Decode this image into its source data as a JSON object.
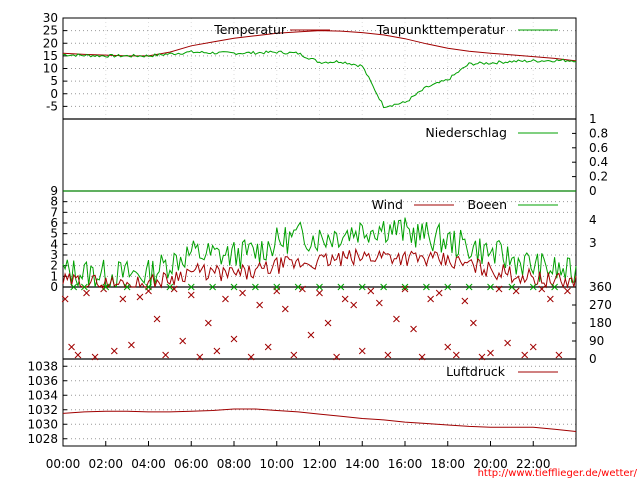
{
  "chart_data": [
    {
      "type": "line",
      "title": "",
      "xlabel": "",
      "ylabel": "",
      "ylim": [
        -10,
        30
      ],
      "yticks": [
        "30",
        "25",
        "20",
        "15",
        "10",
        "5",
        "0",
        "-5"
      ],
      "series": [
        {
          "name": "Temperatur",
          "color": "#a00000",
          "x": [
            0,
            1,
            2,
            3,
            4,
            5,
            6,
            7,
            8,
            9,
            10,
            11,
            12,
            13,
            14,
            15,
            16,
            17,
            18,
            19,
            20,
            21,
            22,
            23,
            24
          ],
          "values": [
            16,
            15.6,
            15.3,
            15,
            15,
            16.5,
            19,
            20.5,
            22,
            23,
            24,
            24.5,
            25,
            24.8,
            24.2,
            23.3,
            21.8,
            19.8,
            18,
            16.8,
            16,
            15.4,
            14.7,
            14,
            13
          ]
        },
        {
          "name": "Taupunkttemperatur",
          "color": "#00a000",
          "x": [
            0,
            1,
            2,
            3,
            4,
            5,
            6,
            7,
            8,
            9,
            10,
            11,
            12,
            13,
            14,
            15,
            16,
            17,
            18,
            19,
            20,
            21,
            22,
            23,
            24
          ],
          "values": [
            15.5,
            15.2,
            15,
            15,
            15,
            15.8,
            16.5,
            16.2,
            16.1,
            16.2,
            16.5,
            16,
            12.5,
            12.8,
            11,
            -5,
            -3.5,
            2.5,
            5.5,
            11.8,
            12.2,
            12.8,
            13,
            13.2,
            13.2
          ]
        }
      ]
    },
    {
      "type": "line",
      "title": "",
      "xlabel": "",
      "ylabel": "",
      "ylim": [
        0,
        1
      ],
      "yticks": [
        "1",
        "0.8",
        "0.6",
        "0.4",
        "0.2",
        "0"
      ],
      "series": [
        {
          "name": "Niederschlag",
          "color": "#00a000",
          "x": [
            0,
            24
          ],
          "values": [
            0,
            0
          ]
        }
      ]
    },
    {
      "type": "line",
      "title": "",
      "xlabel": "",
      "ylabel": "",
      "ylim": [
        0,
        9
      ],
      "yticks": [
        "9",
        "8",
        "7",
        "6",
        "5",
        "4",
        "3",
        "2",
        "1",
        "0"
      ],
      "y2ticks": [
        "4",
        "3"
      ],
      "series": [
        {
          "name": "Wind",
          "color": "#a00000",
          "x": [
            0,
            1,
            2,
            3,
            4,
            5,
            6,
            7,
            8,
            9,
            10,
            11,
            12,
            13,
            14,
            15,
            16,
            17,
            18,
            19,
            20,
            21,
            22,
            23,
            24
          ],
          "values": [
            0.5,
            0.5,
            0.3,
            0.3,
            0.3,
            0.8,
            1.5,
            1.3,
            1.2,
            1.4,
            2,
            2.2,
            2.4,
            2.6,
            2.8,
            3,
            2.8,
            2.6,
            2.4,
            2.1,
            1.6,
            1.2,
            0.9,
            0.5,
            0.5
          ]
        },
        {
          "name": "Boeen",
          "color": "#00a000",
          "x": [
            0,
            1,
            2,
            3,
            4,
            5,
            6,
            7,
            8,
            9,
            10,
            11,
            12,
            13,
            14,
            15,
            16,
            17,
            18,
            19,
            20,
            21,
            22,
            23,
            24
          ],
          "values": [
            1.5,
            1.3,
            1.2,
            1.2,
            1.2,
            2.3,
            3.2,
            3,
            3,
            3.3,
            4.2,
            4.8,
            4.6,
            5,
            5.4,
            5.6,
            5.2,
            4.8,
            4.3,
            3.8,
            3.2,
            2.6,
            2,
            1.6,
            1.2
          ]
        }
      ]
    },
    {
      "type": "scatter",
      "title": "",
      "xlabel": "",
      "ylabel": "",
      "ylim": [
        0,
        360
      ],
      "yticks": [
        "360",
        "270",
        "180",
        "90",
        "0"
      ],
      "series": [
        {
          "name": "",
          "color": "#a00000",
          "marker": "x",
          "x": [
            0.1,
            0.4,
            0.7,
            1.1,
            1.5,
            1.9,
            2.4,
            2.8,
            3.2,
            3.6,
            4,
            4.4,
            4.8,
            5.2,
            5.6,
            6,
            6.4,
            6.8,
            7.2,
            7.6,
            8,
            8.4,
            8.8,
            9.2,
            9.6,
            10,
            10.4,
            10.8,
            11.2,
            11.6,
            12,
            12.4,
            12.8,
            13.2,
            13.6,
            14,
            14.4,
            14.8,
            15.2,
            15.6,
            16,
            16.4,
            16.8,
            17.2,
            17.6,
            18,
            18.4,
            18.8,
            19.2,
            19.6,
            20,
            20.4,
            20.8,
            21.2,
            21.6,
            22,
            22.4,
            22.8,
            23.2,
            23.6
          ],
          "values": [
            300,
            60,
            20,
            330,
            10,
            350,
            40,
            300,
            70,
            310,
            340,
            200,
            20,
            350,
            90,
            320,
            10,
            180,
            40,
            300,
            100,
            330,
            10,
            270,
            60,
            340,
            250,
            20,
            350,
            120,
            330,
            180,
            10,
            300,
            270,
            40,
            340,
            280,
            20,
            200,
            350,
            150,
            10,
            300,
            330,
            60,
            20,
            290,
            180,
            10,
            30,
            350,
            80,
            340,
            20,
            60,
            350,
            300,
            20,
            340
          ]
        },
        {
          "name": "",
          "color": "#00a000",
          "marker": "x",
          "x": [
            0.5,
            1,
            2,
            3,
            4,
            5,
            6,
            7,
            8,
            9,
            10,
            11,
            12,
            13,
            14,
            15,
            16,
            17,
            18,
            19,
            20,
            21,
            22,
            23
          ],
          "values": [
            360,
            360,
            360,
            360,
            360,
            360,
            360,
            360,
            360,
            360,
            360,
            360,
            360,
            360,
            360,
            360,
            360,
            360,
            360,
            360,
            360,
            360,
            360,
            360
          ]
        }
      ]
    },
    {
      "type": "line",
      "title": "",
      "xlabel": "",
      "ylabel": "",
      "ylim": [
        1027,
        1039
      ],
      "yticks": [
        "1038",
        "1036",
        "1034",
        "1032",
        "1030",
        "1028"
      ],
      "x_tick_labels": [
        "00:00",
        "02:00",
        "04:00",
        "06:00",
        "08:00",
        "10:00",
        "12:00",
        "14:00",
        "16:00",
        "18:00",
        "20:00",
        "22:00"
      ],
      "series": [
        {
          "name": "Luftdruck",
          "color": "#a00000",
          "x": [
            0,
            1,
            2,
            3,
            4,
            5,
            6,
            7,
            8,
            9,
            10,
            11,
            12,
            13,
            14,
            15,
            16,
            17,
            18,
            19,
            20,
            21,
            22,
            23,
            24
          ],
          "values": [
            1031.5,
            1031.7,
            1031.8,
            1031.8,
            1031.7,
            1031.7,
            1031.8,
            1031.9,
            1032.1,
            1032.1,
            1031.9,
            1031.7,
            1031.4,
            1031.1,
            1030.8,
            1030.6,
            1030.3,
            1030.1,
            1029.9,
            1029.7,
            1029.6,
            1029.6,
            1029.6,
            1029.3,
            1029
          ]
        }
      ]
    }
  ],
  "credit": "http://www.tiefflieger.de/wetter/"
}
